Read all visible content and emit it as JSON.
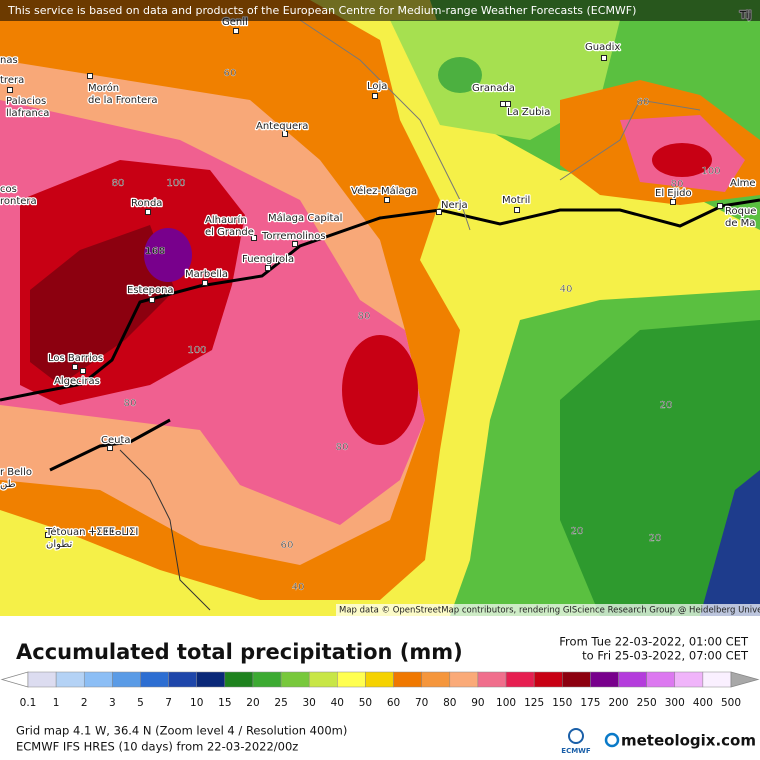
{
  "banner": "This service is based on data and products of the European Centre for Medium-range Weather Forecasts (ECMWF)",
  "map": {
    "places": [
      [
        "Genil"
      ],
      [
        "nas"
      ],
      [
        "trera"
      ],
      [
        "Palacios",
        "llafranca"
      ],
      [
        "Morón",
        "de la Frontera"
      ],
      [
        "Loja"
      ],
      [
        "Granada"
      ],
      [
        "La Zubia"
      ],
      [
        "Guadix"
      ],
      [
        "Antequera"
      ],
      [
        "Vélez-Málaga"
      ],
      [
        "Nerja"
      ],
      [
        "Motril"
      ],
      [
        "El Ejido"
      ],
      [
        "Alme"
      ],
      [
        "Roque",
        "de Ma"
      ],
      [
        "Tij"
      ],
      [
        "cos",
        "rontera"
      ],
      [
        "Ronda"
      ],
      [
        "Alhaurín",
        "el Grande"
      ],
      [
        "Málaga Capital"
      ],
      [
        "Torremolinos"
      ],
      [
        "Fuengirola"
      ],
      [
        "Marbella"
      ],
      [
        "Estepona"
      ],
      [
        "Los Barrios"
      ],
      [
        "Algeciras"
      ],
      [
        "Ceuta"
      ],
      [
        "r Bello",
        "طن"
      ],
      [
        "Tétouan ⵜⵉⵟⵟⴰⵡⵉⵏ",
        "تطوان"
      ]
    ],
    "contour_labels": [
      60,
      80,
      100,
      60,
      80,
      100,
      168,
      80,
      100,
      80,
      40,
      20,
      80,
      20,
      20,
      60,
      40
    ],
    "attribution": "Map data © OpenStreetMap contributors, rendering GIScience Research Group @ Heidelberg University"
  },
  "legend": {
    "title": "Accumulated total precipitation (mm)",
    "period": [
      "From Tue 22-03-2022, 01:00 CET",
      "to Fri 25-03-2022, 07:00 CET"
    ],
    "scale": [
      0.1,
      1,
      2,
      3,
      5,
      7,
      10,
      15,
      20,
      25,
      30,
      40,
      50,
      60,
      70,
      80,
      90,
      100,
      125,
      150,
      175,
      200,
      250,
      300,
      400,
      500
    ],
    "colors": [
      "#ffffff",
      "#dcdcf0",
      "#b4d2f5",
      "#8cbef5",
      "#5a9be6",
      "#2d6ed2",
      "#1e46aa",
      "#0a2878",
      "#1e821e",
      "#3caa32",
      "#78c83c",
      "#c8e646",
      "#ffff50",
      "#f5d200",
      "#f07800",
      "#f5963c",
      "#faaa78",
      "#f06e8c",
      "#e61e50",
      "#c80014",
      "#8c000f",
      "#78008c",
      "#b43cdc",
      "#dc78f0",
      "#f0b4fa",
      "#faf0ff",
      "#a8a8a8"
    ]
  },
  "footer": {
    "grid": "Grid map 4.1 W, 36.4 N (Zoom level 4 / Resolution 400m)",
    "model": "ECMWF IFS HRES (10 days) from 22-03-2022/00z",
    "ecmwf": "ECMWF",
    "brand": "meteologix.com"
  }
}
